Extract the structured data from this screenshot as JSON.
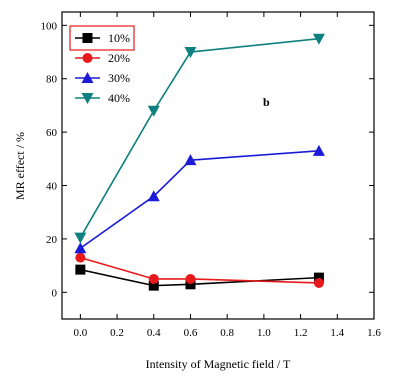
{
  "chart_data": {
    "type": "line",
    "xlabel": "Intensity of Magnetic field / T",
    "ylabel": "MR effect / %",
    "annotation": "b",
    "xlim": [
      -0.1,
      1.6
    ],
    "ylim": [
      -10,
      105
    ],
    "xticks": [
      0.0,
      0.2,
      0.4,
      0.6,
      0.8,
      1.0,
      1.2,
      1.4,
      1.6
    ],
    "xtick_labels": [
      "0.0",
      "0.2",
      "0.4",
      "0.6",
      "0.8",
      "1.0",
      "1.2",
      "1.4",
      "1.6"
    ],
    "yticks": [
      0,
      20,
      40,
      60,
      80,
      100
    ],
    "ytick_labels": [
      "0",
      "20",
      "40",
      "60",
      "80",
      "100"
    ],
    "grid": false,
    "legend_position": "top-left",
    "series": [
      {
        "name": "10%",
        "color": "#000000",
        "marker": "square",
        "x": [
          0.0,
          0.4,
          0.6,
          1.3
        ],
        "y": [
          8.5,
          2.5,
          3,
          5.5
        ]
      },
      {
        "name": "20%",
        "color": "#e8191b",
        "marker": "circle",
        "x": [
          0.0,
          0.4,
          0.6,
          1.3
        ],
        "y": [
          13,
          5,
          5,
          3.5
        ]
      },
      {
        "name": "30%",
        "color": "#1c1cd8",
        "marker": "triangle-up",
        "x": [
          0.0,
          0.4,
          0.6,
          1.3
        ],
        "y": [
          16.5,
          36,
          49.5,
          53
        ]
      },
      {
        "name": "40%",
        "color": "#0f8080",
        "marker": "triangle-down",
        "x": [
          0.0,
          0.4,
          0.6,
          1.3
        ],
        "y": [
          20.5,
          68,
          90,
          95
        ]
      }
    ]
  }
}
